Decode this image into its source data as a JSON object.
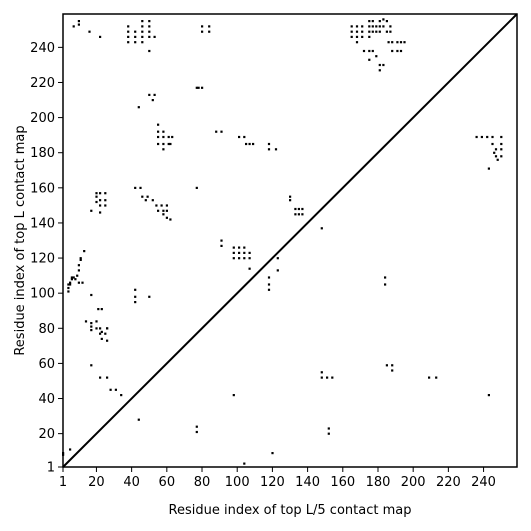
{
  "chart_data": {
    "type": "scatter",
    "title": "",
    "xlabel": "Residue index of top L/5 contact map",
    "ylabel": "Residue index of top L contact map",
    "xlim": [
      1,
      259
    ],
    "ylim": [
      1,
      259
    ],
    "xticks": [
      1,
      20,
      40,
      60,
      80,
      100,
      120,
      140,
      160,
      180,
      200,
      220,
      240
    ],
    "yticks": [
      1,
      20,
      40,
      60,
      80,
      100,
      120,
      140,
      160,
      180,
      200,
      220,
      240
    ],
    "diagonal": true,
    "grid": false,
    "marker_color": "#000000",
    "series": [
      {
        "values_description_free": true,
        "points": [
          [
            1,
            8
          ],
          [
            1,
            9
          ],
          [
            5,
            11
          ],
          [
            4,
            101
          ],
          [
            4,
            103
          ],
          [
            4,
            105
          ],
          [
            5,
            105
          ],
          [
            5,
            106
          ],
          [
            6,
            108
          ],
          [
            6,
            109
          ],
          [
            7,
            109
          ],
          [
            8,
            108
          ],
          [
            9,
            110
          ],
          [
            10,
            106
          ],
          [
            10,
            113
          ],
          [
            10,
            116
          ],
          [
            11,
            119
          ],
          [
            11,
            120
          ],
          [
            12,
            106
          ],
          [
            13,
            124
          ],
          [
            7,
            252
          ],
          [
            10,
            253
          ],
          [
            10,
            255
          ],
          [
            16,
            249
          ],
          [
            22,
            246
          ],
          [
            14,
            84
          ],
          [
            17,
            79
          ],
          [
            17,
            81
          ],
          [
            17,
            83
          ],
          [
            17,
            99
          ],
          [
            17,
            59
          ],
          [
            20,
            80
          ],
          [
            20,
            84
          ],
          [
            21,
            91
          ],
          [
            22,
            77
          ],
          [
            22,
            80
          ],
          [
            23,
            74
          ],
          [
            23,
            78
          ],
          [
            23,
            91
          ],
          [
            25,
            77
          ],
          [
            26,
            80
          ],
          [
            26,
            73
          ],
          [
            26,
            80
          ],
          [
            22,
            52
          ],
          [
            26,
            52
          ],
          [
            28,
            45
          ],
          [
            31,
            45
          ],
          [
            34,
            42
          ],
          [
            17,
            147
          ],
          [
            20,
            152
          ],
          [
            20,
            155
          ],
          [
            20,
            157
          ],
          [
            22,
            146
          ],
          [
            22,
            150
          ],
          [
            22,
            153
          ],
          [
            22,
            157
          ],
          [
            25,
            150
          ],
          [
            25,
            153
          ],
          [
            25,
            157
          ],
          [
            38,
            243
          ],
          [
            38,
            246
          ],
          [
            38,
            249
          ],
          [
            38,
            252
          ],
          [
            42,
            243
          ],
          [
            42,
            246
          ],
          [
            42,
            249
          ],
          [
            46,
            243
          ],
          [
            46,
            246
          ],
          [
            46,
            249
          ],
          [
            46,
            252
          ],
          [
            46,
            255
          ],
          [
            50,
            246
          ],
          [
            50,
            249
          ],
          [
            50,
            252
          ],
          [
            50,
            255
          ],
          [
            50,
            238
          ],
          [
            53,
            246
          ],
          [
            44,
            206
          ],
          [
            50,
            213
          ],
          [
            52,
            210
          ],
          [
            53,
            213
          ],
          [
            42,
            160
          ],
          [
            45,
            160
          ],
          [
            46,
            155
          ],
          [
            48,
            153
          ],
          [
            49,
            155
          ],
          [
            52,
            153
          ],
          [
            54,
            150
          ],
          [
            55,
            147
          ],
          [
            57,
            150
          ],
          [
            58,
            147
          ],
          [
            58,
            145
          ],
          [
            60,
            143
          ],
          [
            60,
            147
          ],
          [
            60,
            150
          ],
          [
            62,
            142
          ],
          [
            42,
            102
          ],
          [
            42,
            98
          ],
          [
            42,
            95
          ],
          [
            50,
            98
          ],
          [
            55,
            196
          ],
          [
            55,
            192
          ],
          [
            55,
            189
          ],
          [
            55,
            185
          ],
          [
            58,
            192
          ],
          [
            58,
            189
          ],
          [
            58,
            185
          ],
          [
            58,
            182
          ],
          [
            61,
            189
          ],
          [
            61,
            185
          ],
          [
            62,
            185
          ],
          [
            63,
            189
          ],
          [
            44,
            28
          ],
          [
            77,
            160
          ],
          [
            77,
            217
          ],
          [
            78,
            217
          ],
          [
            80,
            217
          ],
          [
            80,
            252
          ],
          [
            80,
            249
          ],
          [
            84,
            252
          ],
          [
            84,
            249
          ],
          [
            88,
            192
          ],
          [
            91,
            192
          ],
          [
            91,
            130
          ],
          [
            91,
            127
          ],
          [
            98,
            126
          ],
          [
            98,
            123
          ],
          [
            98,
            120
          ],
          [
            101,
            126
          ],
          [
            101,
            123
          ],
          [
            101,
            120
          ],
          [
            104,
            126
          ],
          [
            104,
            123
          ],
          [
            104,
            120
          ],
          [
            107,
            123
          ],
          [
            107,
            120
          ],
          [
            107,
            114
          ],
          [
            98,
            42
          ],
          [
            104,
            3
          ],
          [
            101,
            189
          ],
          [
            104,
            189
          ],
          [
            105,
            185
          ],
          [
            107,
            185
          ],
          [
            109,
            185
          ],
          [
            118,
            105
          ],
          [
            118,
            102
          ],
          [
            118,
            109
          ],
          [
            120,
            9
          ],
          [
            123,
            120
          ],
          [
            123,
            113
          ],
          [
            118,
            185
          ],
          [
            118,
            182
          ],
          [
            122,
            182
          ],
          [
            130,
            155
          ],
          [
            130,
            153
          ],
          [
            133,
            148
          ],
          [
            133,
            145
          ],
          [
            135,
            148
          ],
          [
            135,
            145
          ],
          [
            137,
            148
          ],
          [
            137,
            145
          ],
          [
            148,
            137
          ],
          [
            148,
            52
          ],
          [
            148,
            55
          ],
          [
            151,
            52
          ],
          [
            152,
            20
          ],
          [
            152,
            23
          ],
          [
            154,
            52
          ],
          [
            165,
            252
          ],
          [
            168,
            252
          ],
          [
            168,
            249
          ],
          [
            168,
            246
          ],
          [
            171,
            252
          ],
          [
            171,
            249
          ],
          [
            171,
            246
          ],
          [
            175,
            255
          ],
          [
            175,
            252
          ],
          [
            175,
            249
          ],
          [
            175,
            246
          ],
          [
            177,
            255
          ],
          [
            177,
            252
          ],
          [
            177,
            249
          ],
          [
            179,
            252
          ],
          [
            179,
            249
          ],
          [
            181,
            255
          ],
          [
            181,
            252
          ],
          [
            181,
            249
          ],
          [
            183,
            256
          ],
          [
            183,
            252
          ],
          [
            185,
            255
          ],
          [
            185,
            249
          ],
          [
            187,
            252
          ],
          [
            187,
            249
          ],
          [
            165,
            246
          ],
          [
            165,
            249
          ],
          [
            168,
            243
          ],
          [
            172,
            238
          ],
          [
            175,
            238
          ],
          [
            177,
            238
          ],
          [
            179,
            235
          ],
          [
            175,
            233
          ],
          [
            181,
            230
          ],
          [
            181,
            227
          ],
          [
            183,
            230
          ],
          [
            186,
            243
          ],
          [
            188,
            243
          ],
          [
            188,
            238
          ],
          [
            191,
            243
          ],
          [
            191,
            238
          ],
          [
            193,
            243
          ],
          [
            193,
            238
          ],
          [
            195,
            243
          ],
          [
            184,
            109
          ],
          [
            184,
            105
          ],
          [
            185,
            59
          ],
          [
            188,
            59
          ],
          [
            188,
            56
          ],
          [
            209,
            52
          ],
          [
            213,
            52
          ],
          [
            236,
            189
          ],
          [
            239,
            189
          ],
          [
            242,
            189
          ],
          [
            243,
            171
          ],
          [
            245,
            189
          ],
          [
            245,
            185
          ],
          [
            247,
            182
          ],
          [
            247,
            178
          ],
          [
            248,
            176
          ],
          [
            250,
            189
          ],
          [
            250,
            185
          ],
          [
            250,
            182
          ],
          [
            250,
            178
          ],
          [
            246,
            180
          ],
          [
            243,
            42
          ],
          [
            77,
            21
          ],
          [
            77,
            24
          ]
        ]
      }
    ]
  }
}
